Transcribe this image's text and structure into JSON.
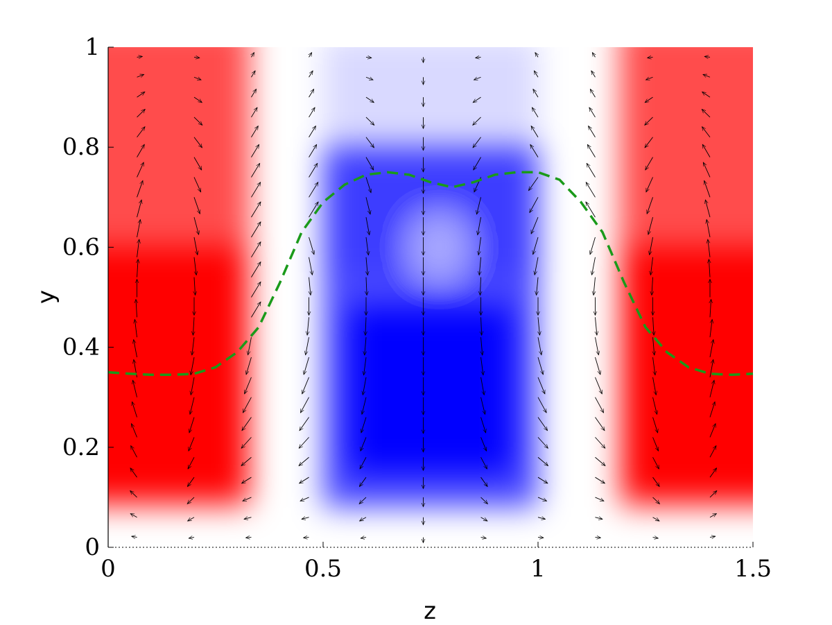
{
  "chart_data": {
    "type": "heatmap",
    "xlabel": "z",
    "ylabel": "y",
    "xlim": [
      0,
      1.5
    ],
    "ylim": [
      0,
      1
    ],
    "x_ticks": [
      {
        "value": 0,
        "label": "0"
      },
      {
        "value": 0.5,
        "label": "0.5"
      },
      {
        "value": 1,
        "label": "1"
      },
      {
        "value": 1.5,
        "label": "1.5"
      }
    ],
    "y_ticks": [
      {
        "value": 0,
        "label": "0"
      },
      {
        "value": 0.2,
        "label": "0.2"
      },
      {
        "value": 0.4,
        "label": "0.4"
      },
      {
        "value": 0.6,
        "label": "0.6"
      },
      {
        "value": 0.8,
        "label": "0.8"
      },
      {
        "value": 1,
        "label": "1"
      }
    ],
    "colormap": {
      "negative": "#0000ff",
      "zero": "#ffffff",
      "positive": "#ff0000"
    },
    "field_regions": [
      {
        "sign": "positive",
        "z_range": [
          0,
          0.35
        ],
        "peak_y": 0.35
      },
      {
        "sign": "negative",
        "z_range": [
          0.5,
          1.0
        ],
        "peak_y": 0.28
      },
      {
        "sign": "positive",
        "z_range": [
          1.2,
          1.5
        ],
        "peak_y": 0.35
      }
    ],
    "quiver": {
      "color": "#000000",
      "columns_z": [
        0.067,
        0.2,
        0.333,
        0.467,
        0.6,
        0.733,
        0.867,
        1.0,
        1.133,
        1.267,
        1.4
      ]
    },
    "interface_line": {
      "color": "#1a9a1a",
      "style": "dashed",
      "z": [
        0,
        0.05,
        0.1,
        0.15,
        0.2,
        0.25,
        0.3,
        0.35,
        0.4,
        0.45,
        0.5,
        0.55,
        0.6,
        0.65,
        0.7,
        0.75,
        0.8,
        0.85,
        0.9,
        0.95,
        1.0,
        1.05,
        1.1,
        1.15,
        1.2,
        1.25,
        1.3,
        1.35,
        1.4,
        1.45,
        1.5
      ],
      "y": [
        0.35,
        0.347,
        0.345,
        0.345,
        0.347,
        0.36,
        0.39,
        0.44,
        0.53,
        0.63,
        0.69,
        0.725,
        0.745,
        0.75,
        0.745,
        0.73,
        0.72,
        0.73,
        0.745,
        0.75,
        0.75,
        0.735,
        0.69,
        0.63,
        0.53,
        0.44,
        0.39,
        0.36,
        0.347,
        0.345,
        0.347
      ]
    }
  }
}
